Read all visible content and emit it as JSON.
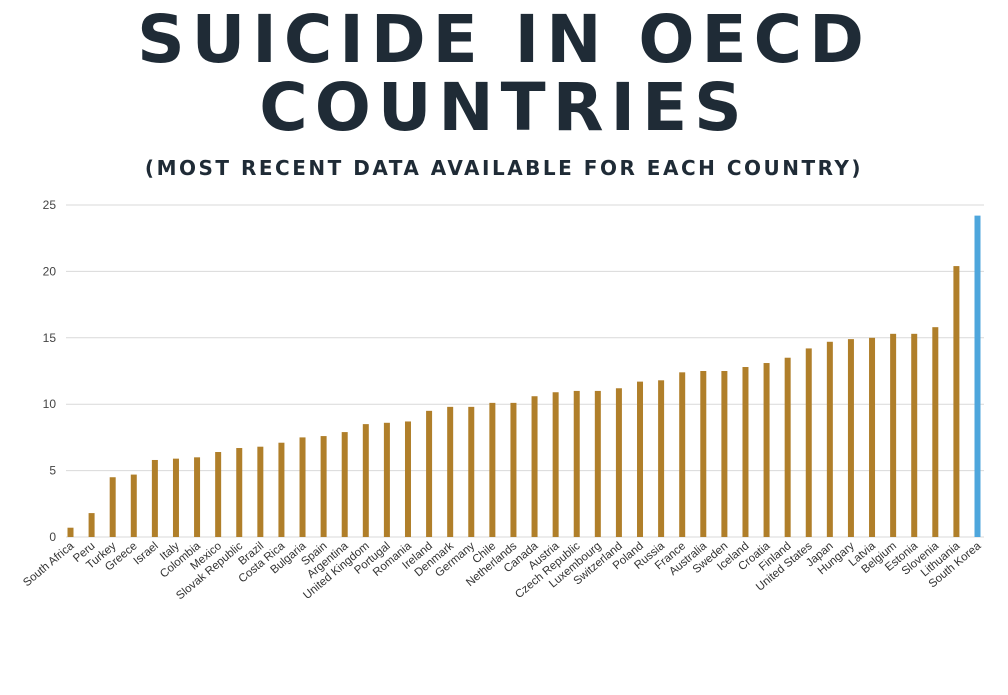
{
  "header": {
    "title_line1": "SUICIDE IN OECD",
    "title_line2": "COUNTRIES",
    "subtitle": "(MOST RECENT DATA AVAILABLE FOR EACH COUNTRY)"
  },
  "colors": {
    "bar": "#b07f2a",
    "highlight": "#4ea6dc",
    "grid": "#d9d9d9",
    "text": "#1f2b36"
  },
  "chart_data": {
    "type": "bar",
    "title": "SUICIDE IN OECD COUNTRIES",
    "subtitle": "(MOST RECENT DATA AVAILABLE FOR EACH COUNTRY)",
    "xlabel": "",
    "ylabel": "",
    "ylim": [
      0,
      25
    ],
    "yticks": [
      0,
      5,
      10,
      15,
      20,
      25
    ],
    "grid": true,
    "highlighted_category": "South Korea",
    "categories": [
      "South Africa",
      "Peru",
      "Turkey",
      "Greece",
      "Israel",
      "Italy",
      "Colombia",
      "Mexico",
      "Slovak Republic",
      "Brazil",
      "Costa Rica",
      "Bulgaria",
      "Spain",
      "Argentina",
      "United Kingdom",
      "Portugal",
      "Romania",
      "Ireland",
      "Denmark",
      "Germany",
      "Chile",
      "Netherlands",
      "Canada",
      "Austria",
      "Czech Republic",
      "Luxembourg",
      "Switzerland",
      "Poland",
      "Russia",
      "France",
      "Australia",
      "Sweden",
      "Iceland",
      "Croatia",
      "Finland",
      "United States",
      "Japan",
      "Hungary",
      "Latvia",
      "Belgium",
      "Estonia",
      "Slovenia",
      "Lithuania",
      "South Korea"
    ],
    "values": [
      0.7,
      1.8,
      4.5,
      4.7,
      5.8,
      5.9,
      6.0,
      6.4,
      6.7,
      6.8,
      7.1,
      7.5,
      7.6,
      7.9,
      8.5,
      8.6,
      8.7,
      9.5,
      9.8,
      9.8,
      10.1,
      10.1,
      10.6,
      10.9,
      11.0,
      11.0,
      11.2,
      11.7,
      11.8,
      12.4,
      12.5,
      12.5,
      12.8,
      13.1,
      13.5,
      14.2,
      14.7,
      14.9,
      15.0,
      15.3,
      15.3,
      15.8,
      20.4,
      24.2
    ]
  }
}
